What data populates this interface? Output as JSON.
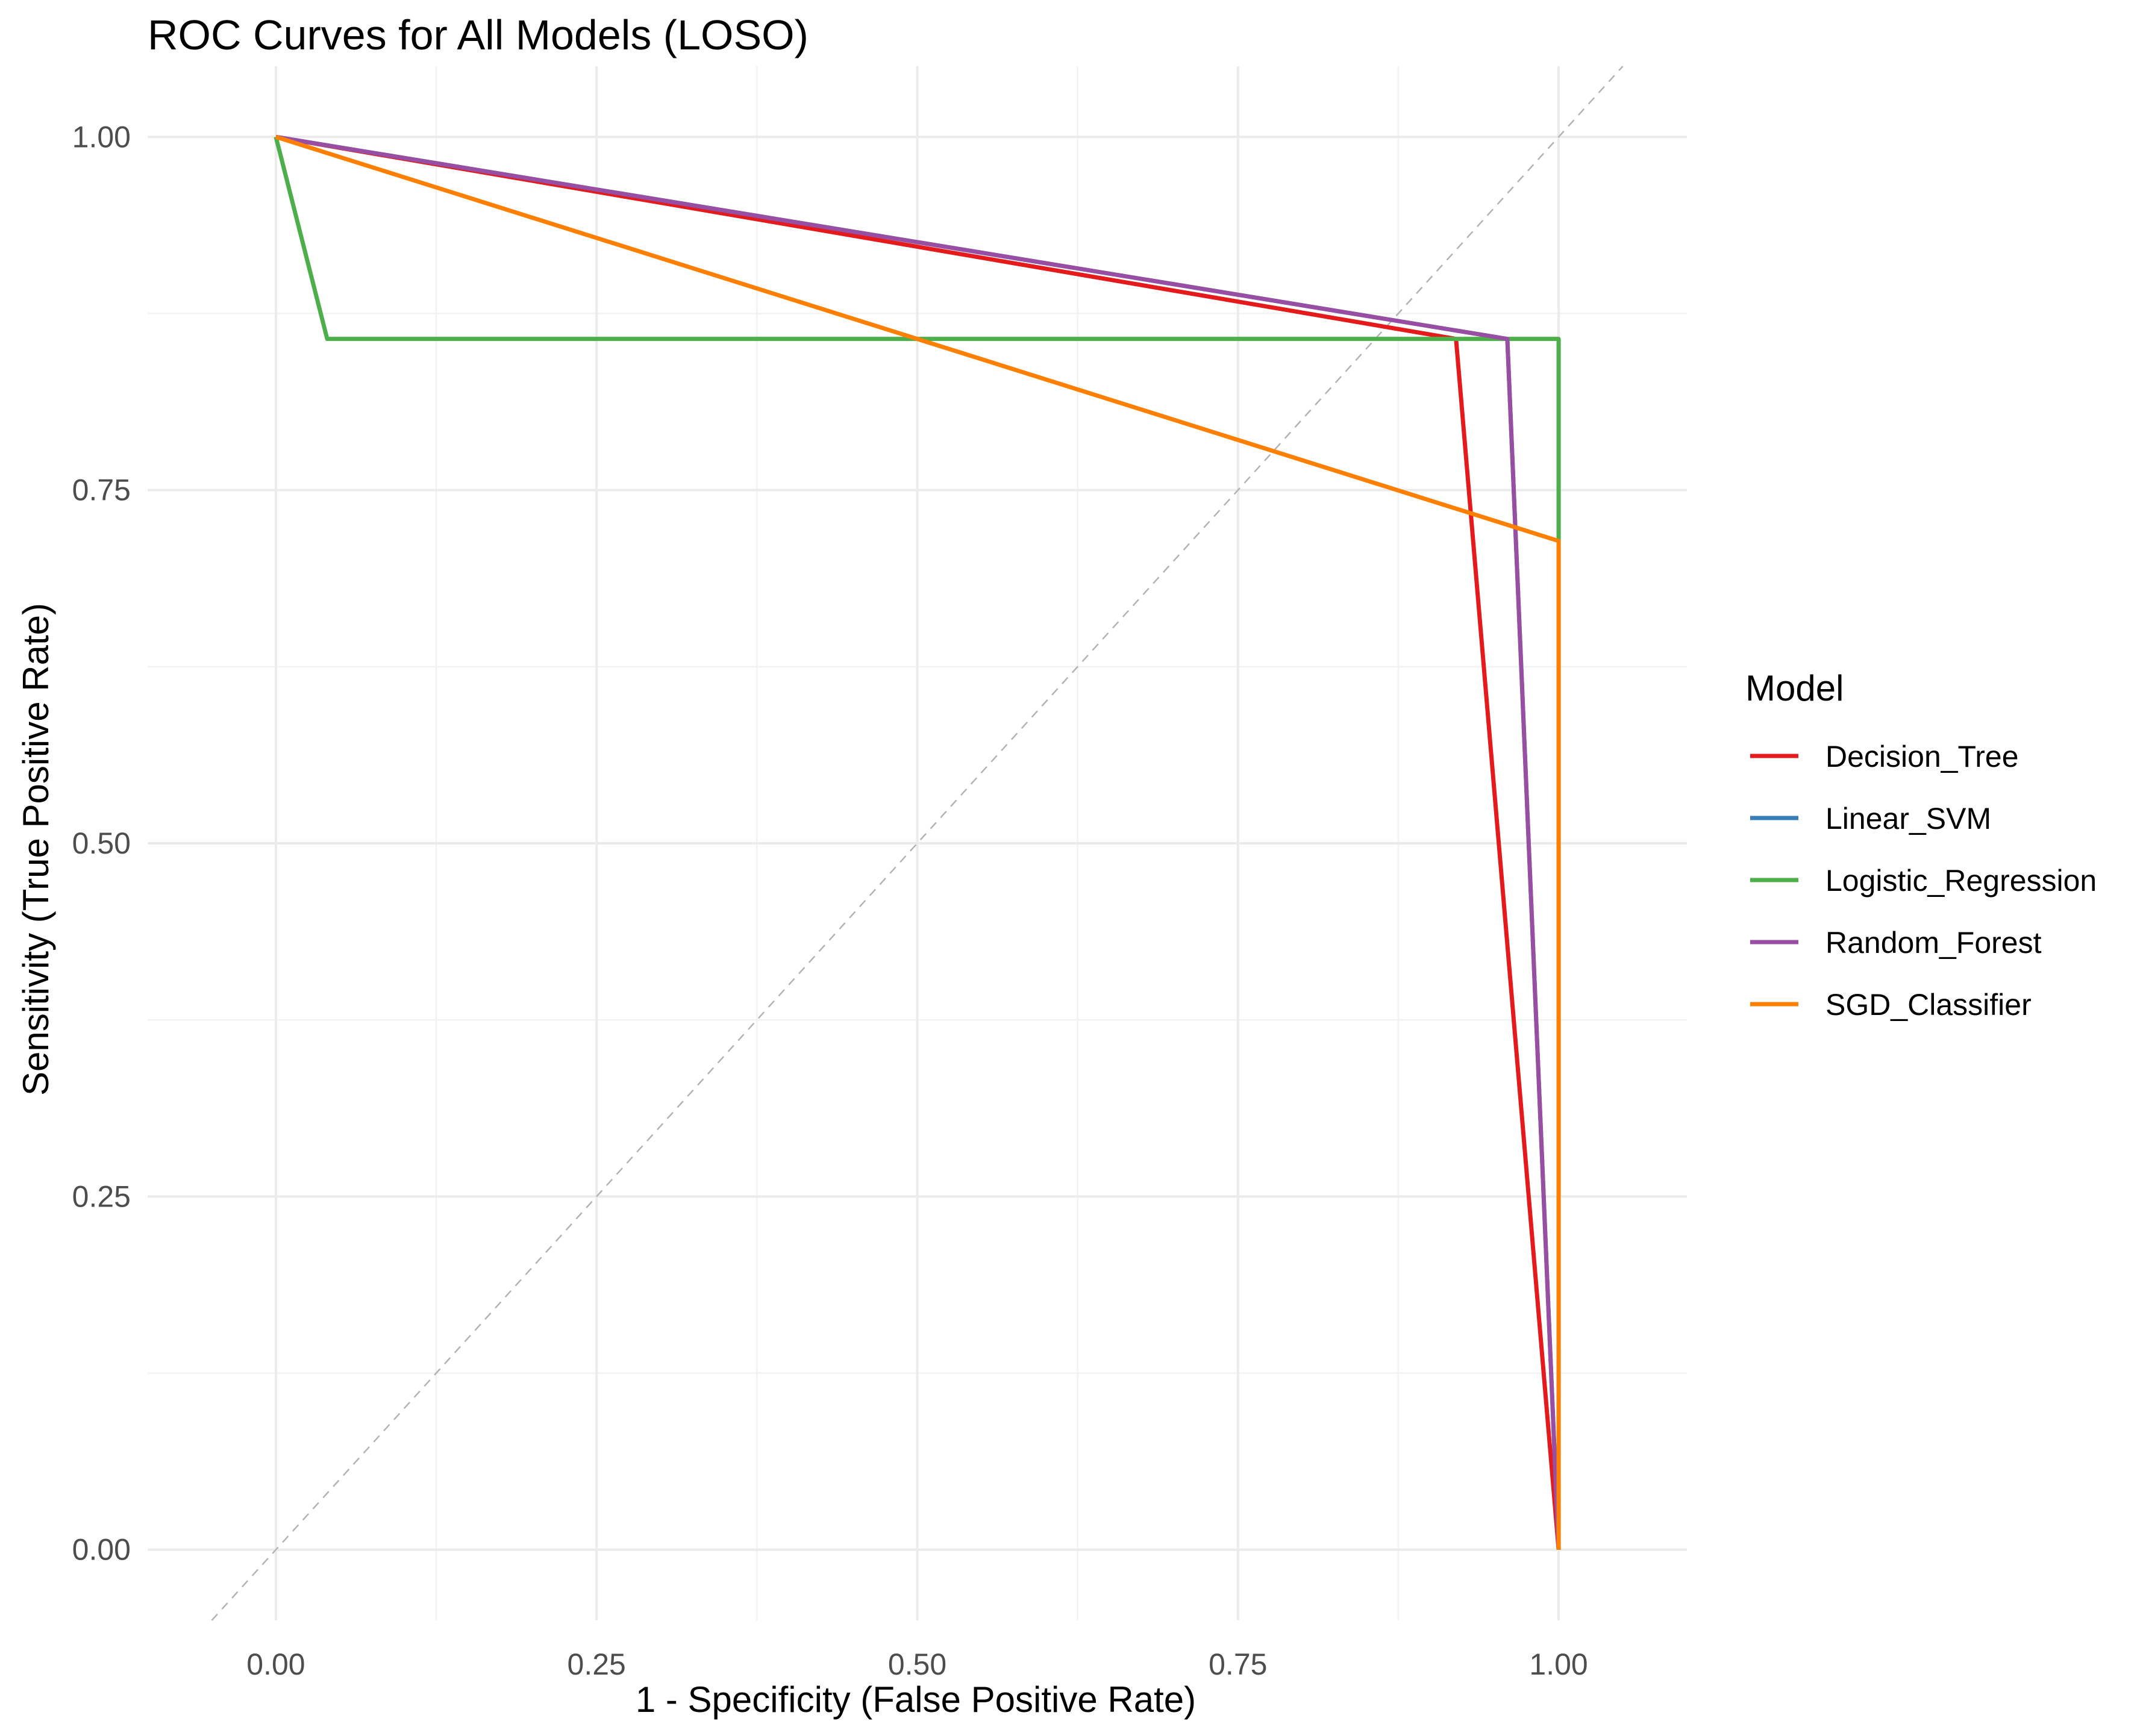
{
  "chart_data": {
    "type": "line",
    "title": "ROC Curves for All Models (LOSO)",
    "xlabel": "1 - Specificity (False Positive Rate)",
    "ylabel": "Sensitivity (True Positive Rate)",
    "xlim": [
      -0.1,
      1.1
    ],
    "ylim": [
      -0.05,
      1.05
    ],
    "xticks": [
      "0.00",
      "0.25",
      "0.50",
      "0.75",
      "1.00"
    ],
    "yticks": [
      "0.00",
      "0.25",
      "0.50",
      "0.75",
      "1.00"
    ],
    "reference_line": "diagonal dashed y = x",
    "grid": true,
    "legend_position": "right",
    "legend_title": "Model",
    "series": [
      {
        "name": "Decision_Tree",
        "color": "#e41a1c",
        "x": [
          0.0,
          0.92,
          1.0
        ],
        "y": [
          1.0,
          0.857,
          0.0
        ]
      },
      {
        "name": "Linear_SVM",
        "color": "#377eb8",
        "x": [
          0.0,
          0.96,
          1.0
        ],
        "y": [
          1.0,
          0.857,
          0.0
        ]
      },
      {
        "name": "Logistic_Regression",
        "color": "#4daf4a",
        "x": [
          0.0,
          0.04,
          1.0,
          1.0
        ],
        "y": [
          1.0,
          0.857,
          0.857,
          0.0
        ]
      },
      {
        "name": "Random_Forest",
        "color": "#984ea3",
        "x": [
          0.0,
          0.96,
          1.0
        ],
        "y": [
          1.0,
          0.857,
          0.0
        ]
      },
      {
        "name": "SGD_Classifier",
        "color": "#ff7f00",
        "x": [
          0.0,
          1.0,
          1.0
        ],
        "y": [
          1.0,
          0.714,
          0.0
        ]
      }
    ]
  }
}
